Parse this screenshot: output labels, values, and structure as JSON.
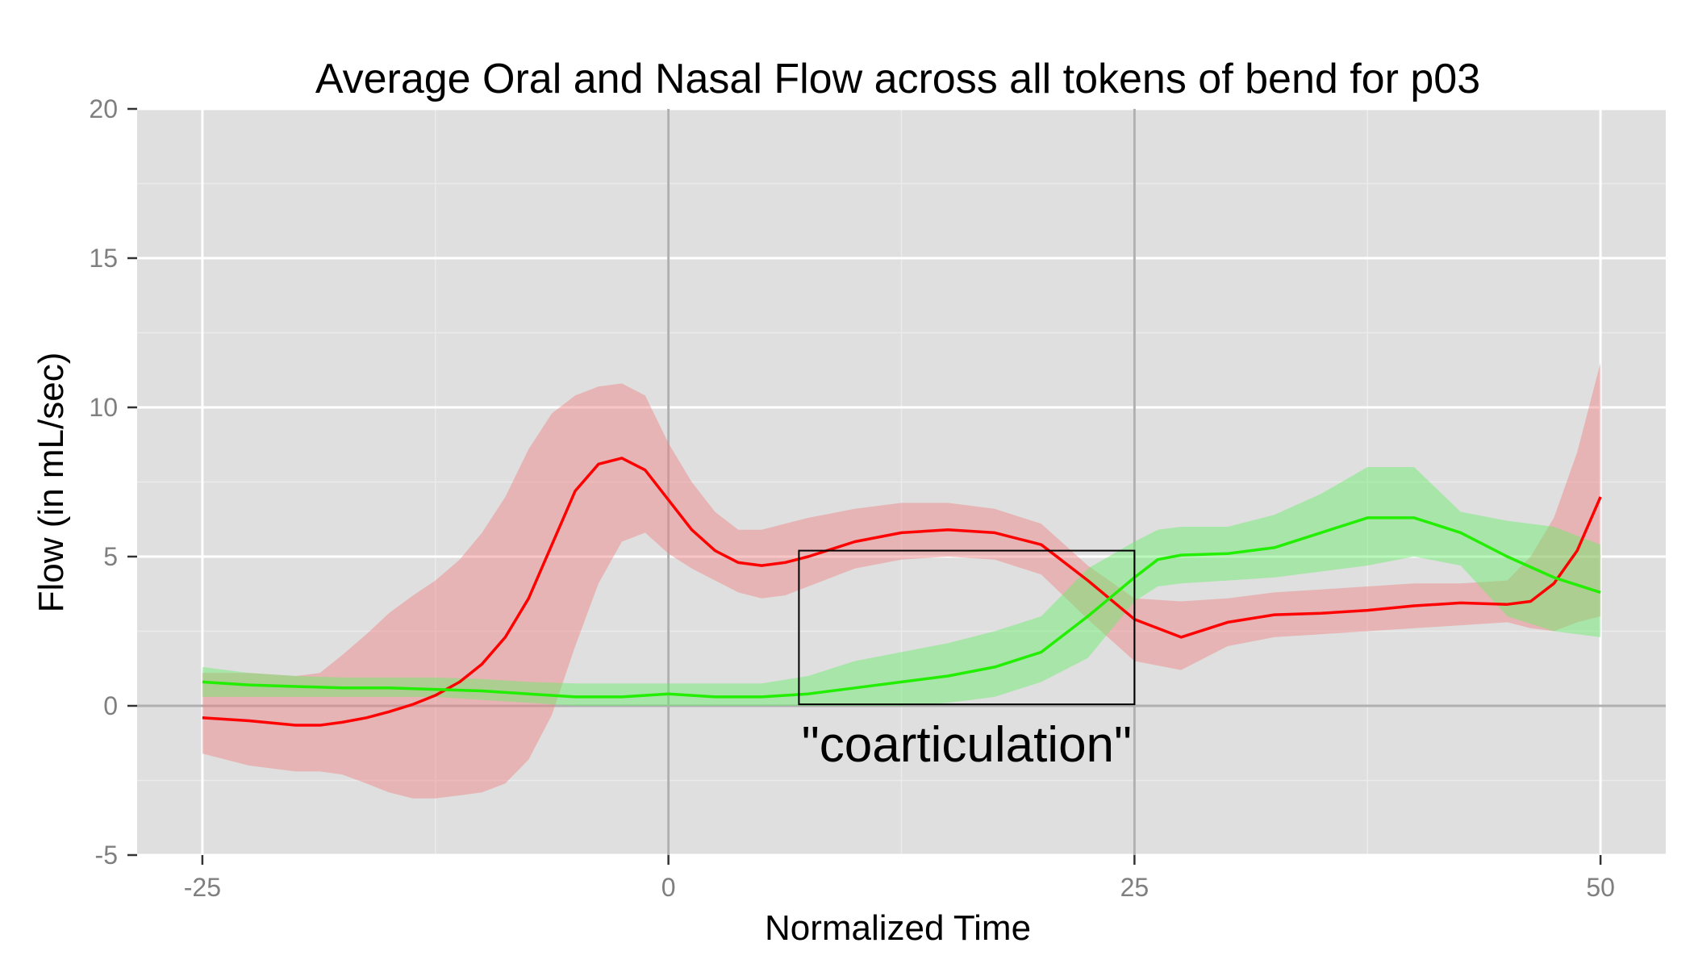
{
  "chart_data": {
    "type": "line",
    "title": "Average Oral and Nasal Flow across all tokens of bend for p03",
    "xlabel": "Normalized Time",
    "ylabel": "Flow (in mL/sec)",
    "xlim": [
      -28.5,
      53.5
    ],
    "ylim": [
      -5,
      20
    ],
    "x_ticks": [
      -25,
      0,
      25,
      50
    ],
    "y_ticks": [
      -5,
      0,
      5,
      10,
      15,
      20
    ],
    "x_tick_labels": [
      "-25",
      "0",
      "25",
      "50"
    ],
    "y_tick_labels": [
      "-5",
      "0",
      "5",
      "10",
      "15",
      "20"
    ],
    "grid": true,
    "vlines": [
      0,
      25
    ],
    "hline": 0,
    "colors": {
      "panel": "#dfdfdf",
      "grid_major": "#ffffff",
      "grid_minor": "#ebebeb",
      "reference": "#b0b0b0",
      "red_line": "#ff0000",
      "red_band": "#f08080",
      "green_line": "#22ee00",
      "green_band": "#66ee66"
    },
    "series": [
      {
        "color_key": "red",
        "x": [
          -25,
          -22.5,
          -20,
          -18.7,
          -17.5,
          -16.2,
          -15,
          -13.7,
          -12.5,
          -11.2,
          -10,
          -8.75,
          -7.5,
          -6.25,
          -5,
          -3.75,
          -2.5,
          -1.25,
          0,
          1.25,
          2.5,
          3.75,
          5,
          6.25,
          7.5,
          10,
          12.5,
          15,
          17.5,
          20,
          22.5,
          25,
          27.5,
          30,
          32.5,
          35,
          37.5,
          40,
          42.5,
          45,
          46.25,
          47.5,
          48.75,
          50
        ],
        "y": [
          -0.4,
          -0.5,
          -0.65,
          -0.65,
          -0.55,
          -0.4,
          -0.2,
          0.05,
          0.35,
          0.8,
          1.4,
          2.3,
          3.6,
          5.4,
          7.2,
          8.1,
          8.3,
          7.9,
          6.9,
          5.9,
          5.2,
          4.8,
          4.7,
          4.8,
          5.0,
          5.5,
          5.8,
          5.9,
          5.8,
          5.4,
          4.2,
          2.9,
          2.3,
          2.8,
          3.05,
          3.1,
          3.2,
          3.35,
          3.45,
          3.4,
          3.5,
          4.1,
          5.2,
          7.0
        ],
        "upper": [
          1.1,
          1.1,
          1.0,
          1.1,
          1.7,
          2.4,
          3.1,
          3.7,
          4.2,
          4.9,
          5.8,
          7.0,
          8.6,
          9.8,
          10.4,
          10.7,
          10.8,
          10.4,
          8.8,
          7.5,
          6.5,
          5.9,
          5.9,
          6.1,
          6.3,
          6.6,
          6.8,
          6.8,
          6.6,
          6.1,
          4.7,
          3.6,
          3.5,
          3.6,
          3.8,
          3.9,
          4.0,
          4.1,
          4.1,
          4.2,
          5.0,
          6.3,
          8.5,
          11.5
        ],
        "lower": [
          -1.6,
          -2.0,
          -2.2,
          -2.2,
          -2.3,
          -2.6,
          -2.9,
          -3.1,
          -3.1,
          -3.0,
          -2.9,
          -2.6,
          -1.8,
          -0.3,
          2.0,
          4.1,
          5.5,
          5.8,
          5.1,
          4.6,
          4.2,
          3.8,
          3.6,
          3.7,
          4.0,
          4.6,
          4.9,
          5.0,
          4.9,
          4.4,
          2.9,
          1.5,
          1.2,
          2.0,
          2.3,
          2.4,
          2.5,
          2.6,
          2.7,
          2.8,
          2.6,
          2.5,
          2.8,
          3.0
        ]
      },
      {
        "color_key": "green",
        "x": [
          -25,
          -22.5,
          -20,
          -17.5,
          -15,
          -12.5,
          -10,
          -7.5,
          -5,
          -2.5,
          0,
          2.5,
          5,
          7.5,
          10,
          12.5,
          15,
          17.5,
          20,
          22.5,
          25,
          26.25,
          27.5,
          30,
          32.5,
          35,
          37.5,
          40,
          42.5,
          45,
          47.5,
          50
        ],
        "y": [
          0.8,
          0.7,
          0.65,
          0.6,
          0.6,
          0.55,
          0.5,
          0.4,
          0.3,
          0.3,
          0.4,
          0.3,
          0.3,
          0.4,
          0.6,
          0.8,
          1.0,
          1.3,
          1.8,
          3.0,
          4.3,
          4.9,
          5.05,
          5.1,
          5.3,
          5.8,
          6.3,
          6.3,
          5.8,
          5.0,
          4.3,
          3.8
        ],
        "upper": [
          1.3,
          1.1,
          1.0,
          0.95,
          0.95,
          0.95,
          0.9,
          0.8,
          0.75,
          0.75,
          0.75,
          0.75,
          0.75,
          1.0,
          1.5,
          1.8,
          2.1,
          2.5,
          3.0,
          4.6,
          5.5,
          5.9,
          6.0,
          6.0,
          6.4,
          7.1,
          8.0,
          8.0,
          6.5,
          6.2,
          6.0,
          5.4
        ],
        "lower": [
          0.3,
          0.3,
          0.3,
          0.3,
          0.3,
          0.3,
          0.2,
          0.1,
          0.0,
          0.0,
          0.0,
          0.0,
          0.0,
          0.0,
          0.0,
          0.0,
          0.1,
          0.3,
          0.8,
          1.6,
          3.5,
          4.0,
          4.1,
          4.2,
          4.3,
          4.5,
          4.7,
          5.0,
          4.7,
          3.0,
          2.5,
          2.3
        ]
      }
    ],
    "annotation": {
      "text": "\"coarticulation\"",
      "box": {
        "x0": 7,
        "x1": 25,
        "y0": 0.05,
        "y1": 5.2
      },
      "label_y": -1.3
    }
  }
}
